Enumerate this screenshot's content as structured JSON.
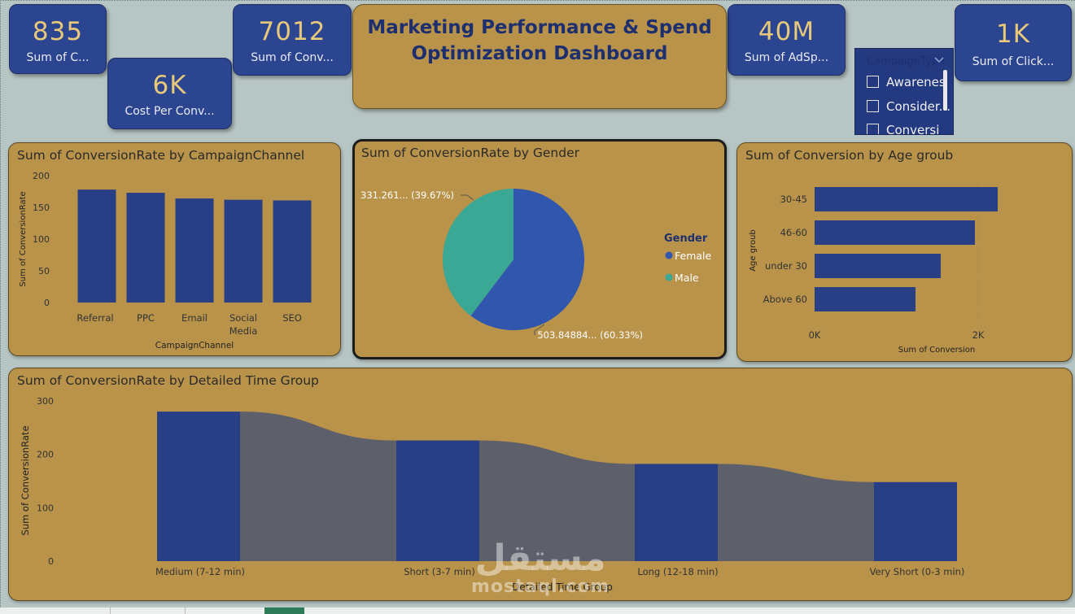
{
  "kpis": {
    "campaigns": {
      "value": "835",
      "label": "Sum of C..."
    },
    "cost_per_conv": {
      "value": "6K",
      "label": "Cost Per Conv..."
    },
    "conversions": {
      "value": "7012",
      "label": "Sum of Conv..."
    },
    "ad_spend": {
      "value": "40M",
      "label": "Sum of AdSp..."
    },
    "clicks": {
      "value": "1K",
      "label": "Sum of Click..."
    }
  },
  "title": {
    "line1": "Marketing Performance & Spend",
    "line2": "Optimization Dashboard"
  },
  "slicer": {
    "header": "CampaignType",
    "items": [
      "Awarenes",
      "Consider...",
      "Conversi"
    ]
  },
  "charts": {
    "channel": {
      "title": "Sum of ConversionRate by CampaignChannel"
    },
    "gender": {
      "title": "Sum of ConversionRate by Gender"
    },
    "age": {
      "title": "Sum of Conversion by Age groub"
    },
    "time": {
      "title": "Sum of ConversionRate by Detailed Time Group"
    }
  },
  "watermark": {
    "line1": "مستقل",
    "line2": "mostaql.com"
  },
  "colors": {
    "bar": "#283f85",
    "gold": "#b99349",
    "teal": "#3aa895",
    "female": "#3056ae",
    "ribbon": "#555a6e"
  },
  "chart_data": [
    {
      "type": "bar",
      "title": "Sum of ConversionRate by CampaignChannel",
      "categories": [
        "Referral",
        "PPC",
        "Email",
        "Social Media",
        "SEO"
      ],
      "values": [
        178,
        173,
        164,
        162,
        161
      ],
      "xlabel": "CampaignChannel",
      "ylabel": "Sum of ConversionRate",
      "ylim": [
        0,
        200
      ],
      "yticks": [
        0,
        50,
        100,
        150,
        200
      ]
    },
    {
      "type": "pie",
      "title": "Sum of ConversionRate by Gender",
      "legend_title": "Gender",
      "legend_position": "right",
      "slices": [
        {
          "name": "Female",
          "value": 503.84884,
          "percent": 60.33,
          "label": "503.84884... (60.33%)"
        },
        {
          "name": "Male",
          "value": 331.261,
          "percent": 39.67,
          "label": "331.261... (39.67%)"
        }
      ]
    },
    {
      "type": "bar",
      "orientation": "horizontal",
      "title": "Sum of Conversion by Age groub",
      "categories": [
        "30-45",
        "46-60",
        "under 30",
        "Above 60"
      ],
      "values": [
        2250,
        1970,
        1550,
        1240
      ],
      "xlabel": "Sum of Conversion",
      "ylabel": "Age groub",
      "xlim": [
        0,
        2500
      ],
      "xticks": [
        "0K",
        "2K"
      ]
    },
    {
      "type": "bar",
      "subtype": "ribbon",
      "title": "Sum of ConversionRate by Detailed Time Group",
      "categories": [
        "Medium (7-12 min)",
        "Short (3-7 min)",
        "Long (12-18 min)",
        "Very Short (0-3 min)"
      ],
      "values": [
        280,
        226,
        182,
        148
      ],
      "xlabel": "Detailed Time Group",
      "ylabel": "Sum of ConversionRate",
      "ylim": [
        0,
        300
      ],
      "yticks": [
        0,
        100,
        200,
        300
      ]
    }
  ]
}
